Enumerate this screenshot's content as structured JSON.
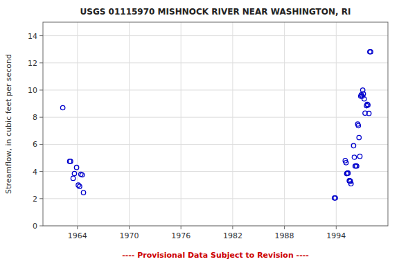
{
  "chart_data": {
    "type": "scatter",
    "title": "USGS 01115970 MISHNOCK RIVER NEAR WASHINGTON, RI",
    "ylabel": "Streamflow, in cubic feet per second",
    "annotations": [
      {
        "text": "---- Provisional Data Subject to Revision ----",
        "color": "#cc0000"
      }
    ],
    "color": "#0000cc",
    "grid": true,
    "xlim": [
      1960,
      2000
    ],
    "ylim": [
      0,
      15
    ],
    "xticks": [
      1964,
      1970,
      1976,
      1982,
      1988,
      1994
    ],
    "yticks": [
      0,
      2,
      4,
      6,
      8,
      10,
      12,
      14
    ],
    "x": [
      1962.3,
      1963.1,
      1963.2,
      1963.5,
      1963.65,
      1963.9,
      1964.1,
      1964.25,
      1964.4,
      1964.55,
      1964.7,
      1993.8,
      1993.9,
      1995.05,
      1995.15,
      1995.22,
      1995.32,
      1995.38,
      1995.52,
      1995.58,
      1995.65,
      1995.72,
      1996.02,
      1996.1,
      1996.2,
      1996.3,
      1996.38,
      1996.5,
      1996.57,
      1996.65,
      1996.75,
      1996.85,
      1996.92,
      1997.02,
      1997.08,
      1997.15,
      1997.25,
      1997.35,
      1997.52,
      1997.6,
      1997.68,
      1997.8,
      1997.9,
      1998.0
    ],
    "values": [
      8.7,
      4.75,
      4.75,
      3.5,
      3.85,
      4.3,
      3.0,
      2.9,
      3.8,
      3.75,
      2.45,
      2.05,
      2.05,
      4.8,
      4.65,
      3.85,
      3.88,
      3.88,
      3.32,
      3.32,
      3.28,
      3.1,
      5.9,
      5.05,
      4.4,
      4.42,
      4.4,
      7.5,
      7.38,
      6.5,
      5.12,
      9.55,
      9.65,
      9.55,
      10.0,
      9.72,
      9.35,
      8.3,
      8.85,
      8.95,
      8.9,
      8.28,
      12.82,
      12.82
    ]
  }
}
